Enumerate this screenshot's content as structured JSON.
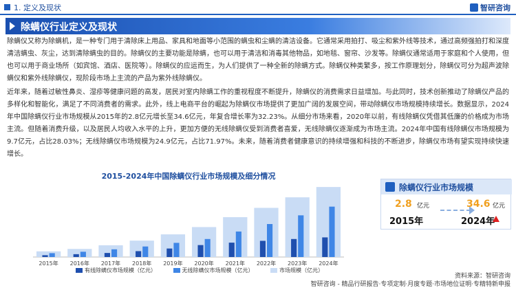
{
  "header": {
    "section": "1. 定义及现状",
    "logo": "智研咨询"
  },
  "title": "除螨仪行业定义及现状",
  "paragraphs": [
    "除螨仪又称为除螨机，是一种专门用于清除床上用品、家具和地面等小范围的螨虫和尘螨的清洁设备。它通常采用拍打、吸尘和紫外线等技术，通过高频强拍打和深度清洁螨虫、灰尘，达到清除螨虫的目的。除螨仪的主要功能是除螨，也可以用于清洁和消毒其他物品，如地毯、窗帘、沙发等。除螨仪通常适用于家庭和个人使用，但也可以用于商业场所（如宾馆、酒店、医院等）。除螨仪的应运而生，为人们提供了一种全新的除螨方式。除螨仪种类繁多，按工作原理划分，除螨仪可分为超声波除螨仪和紫外线除螨仪，现阶段市场上主流的产品为紫外线除螨仪。",
    "近年来，随着过敏性鼻炎、湿疹等健康问题的高发，居民对室内除螨工作的重视程度不断提升，除螨仪的消费需求日益增加。与此同时，技术创新推动了除螨仪产品的多样化和智能化，满足了不同消费者的需求。此外，线上电商平台的崛起为除螨仪市场提供了更加广阔的发展空间，带动除螨仪市场规模持续增长。数据显示，2024年中国除螨仪行业市场规模从2015年的2.8亿元增长至34.6亿元，年复合增长率为32.23%。从细分市场来看，2020年以前，有线除螨仪凭借其低廉的价格成为市场主流。但随着消费升级，以及居民人均收入水平的上升，更加方便的无线除螨仪受到消费者喜爱，无线除螨仪逐渐成为市场主流。2024年中国有线除螨仪市场规模为9.7亿元，占比28.03%；无线除螨仪市场规模为24.9亿元，占比71.97%。未来，随着消费者健康意识的持续增强和科技的不断进步，除螨仪市场有望实现持续快速增长。"
  ],
  "chart_data": {
    "type": "bar",
    "title": "2015-2024年中国除螨仪行业市场规模及细分情况",
    "categories": [
      "2015年",
      "2016年",
      "2017年",
      "2018年",
      "2019年",
      "2020年",
      "2021年",
      "2022年",
      "2023年",
      "2024年"
    ],
    "series": [
      {
        "name": "有线除螨仪市场规模（亿元）",
        "values": [
          0.9,
          1.4,
          2.0,
          2.9,
          4.2,
          5.9,
          7.1,
          8.0,
          8.9,
          9.7
        ]
      },
      {
        "name": "无线除螨仪市场规模（亿元）",
        "values": [
          1.9,
          2.6,
          3.8,
          5.2,
          7.0,
          8.9,
          12.6,
          16.3,
          20.6,
          24.9
        ]
      },
      {
        "name": "市场规模（亿元）",
        "values": [
          2.8,
          4.0,
          5.8,
          8.1,
          11.2,
          14.8,
          19.7,
          24.3,
          29.5,
          34.6
        ]
      }
    ],
    "ylim": [
      0,
      36
    ],
    "legend": "bottom",
    "colors": [
      "#1f4fae",
      "#3f86e6",
      "#c9dcf5"
    ]
  },
  "card": {
    "title": "除螨仪行业市场规模",
    "start_value": "2.8",
    "start_unit": "亿元",
    "start_year": "2015年",
    "end_value": "34.6",
    "end_unit": "亿元",
    "end_year": "2024年"
  },
  "source": "资料来源：智研咨询",
  "footer": "智研咨询 - 精品行研报告·专项定制·月度专题·市场地位证明·专精特新申报"
}
